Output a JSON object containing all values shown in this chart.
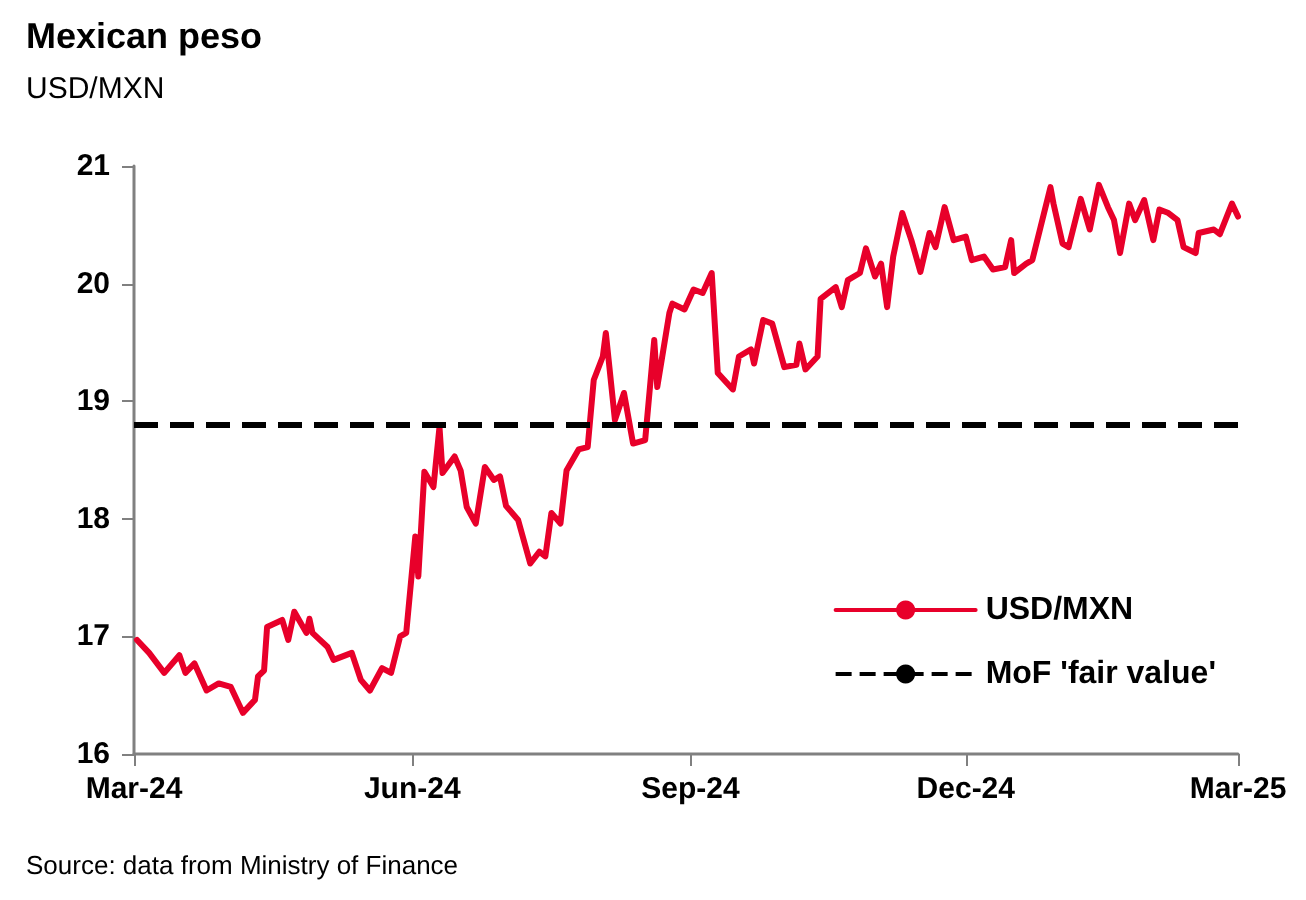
{
  "chart_data": {
    "type": "line",
    "title": "Mexican peso",
    "subtitle": "USD/MXN",
    "x": [
      "2024-03-02",
      "2024-03-06",
      "2024-03-11",
      "2024-03-16",
      "2024-03-18",
      "2024-03-21",
      "2024-03-25",
      "2024-03-29",
      "2024-04-02",
      "2024-04-06",
      "2024-04-10",
      "2024-04-11",
      "2024-04-13",
      "2024-04-14",
      "2024-04-19",
      "2024-04-21",
      "2024-04-23",
      "2024-04-27",
      "2024-04-28",
      "2024-04-29",
      "2024-05-04",
      "2024-05-06",
      "2024-05-12",
      "2024-05-15",
      "2024-05-18",
      "2024-05-22",
      "2024-05-25",
      "2024-05-28",
      "2024-05-30",
      "2024-06-02",
      "2024-06-03",
      "2024-06-05",
      "2024-06-08",
      "2024-06-10",
      "2024-06-11",
      "2024-06-15",
      "2024-06-17",
      "2024-06-19",
      "2024-06-22",
      "2024-06-25",
      "2024-06-28",
      "2024-06-30",
      "2024-07-02",
      "2024-07-06",
      "2024-07-10",
      "2024-07-13",
      "2024-07-15",
      "2024-07-17",
      "2024-07-20",
      "2024-07-22",
      "2024-07-26",
      "2024-07-29",
      "2024-07-31",
      "2024-08-03",
      "2024-08-04",
      "2024-08-07",
      "2024-08-10",
      "2024-08-13",
      "2024-08-17",
      "2024-08-20",
      "2024-08-21",
      "2024-08-25",
      "2024-08-26",
      "2024-08-30",
      "2024-09-02",
      "2024-09-05",
      "2024-09-08",
      "2024-09-10",
      "2024-09-15",
      "2024-09-17",
      "2024-09-21",
      "2024-09-22",
      "2024-09-25",
      "2024-09-28",
      "2024-10-02",
      "2024-10-06",
      "2024-10-07",
      "2024-10-09",
      "2024-10-13",
      "2024-10-14",
      "2024-10-19",
      "2024-10-21",
      "2024-10-23",
      "2024-10-27",
      "2024-10-29",
      "2024-11-01",
      "2024-11-03",
      "2024-11-05",
      "2024-11-07",
      "2024-11-10",
      "2024-11-13",
      "2024-11-16",
      "2024-11-19",
      "2024-11-21",
      "2024-11-24",
      "2024-11-27",
      "2024-12-01",
      "2024-12-03",
      "2024-12-07",
      "2024-12-10",
      "2024-12-14",
      "2024-12-16",
      "2024-12-17",
      "2024-12-21",
      "2024-12-23",
      "2024-12-29",
      "2024-12-30",
      "2025-01-02",
      "2025-01-04",
      "2025-01-08",
      "2025-01-11",
      "2025-01-14",
      "2025-01-17",
      "2025-01-19",
      "2025-01-21",
      "2025-01-24",
      "2025-01-26",
      "2025-01-29",
      "2025-02-01",
      "2025-02-03",
      "2025-02-06",
      "2025-02-09",
      "2025-02-11",
      "2025-02-15",
      "2025-02-16",
      "2025-02-21",
      "2025-02-23",
      "2025-02-27",
      "2025-03-01"
    ],
    "series": [
      {
        "name": "USD/MXN",
        "color": "#e8002a",
        "values": [
          16.97,
          16.86,
          16.69,
          16.84,
          16.69,
          16.77,
          16.54,
          16.6,
          16.57,
          16.35,
          16.46,
          16.66,
          16.71,
          17.08,
          17.14,
          16.97,
          17.21,
          17.03,
          17.15,
          17.03,
          16.91,
          16.8,
          16.86,
          16.63,
          16.54,
          16.73,
          16.69,
          17.0,
          17.03,
          17.85,
          17.51,
          18.4,
          18.27,
          18.78,
          18.39,
          18.53,
          18.41,
          18.1,
          17.96,
          18.44,
          18.33,
          18.36,
          18.11,
          17.99,
          17.62,
          17.72,
          17.68,
          18.05,
          17.96,
          18.41,
          18.59,
          18.61,
          19.18,
          19.38,
          19.58,
          18.84,
          19.07,
          18.64,
          18.67,
          19.52,
          19.12,
          19.75,
          19.83,
          19.78,
          19.95,
          19.92,
          20.09,
          19.24,
          19.1,
          19.38,
          19.44,
          19.32,
          19.69,
          19.66,
          19.29,
          19.31,
          19.49,
          19.27,
          19.38,
          19.87,
          19.97,
          19.8,
          20.03,
          20.09,
          20.3,
          20.06,
          20.17,
          19.8,
          20.23,
          20.6,
          20.37,
          20.1,
          20.43,
          20.31,
          20.65,
          20.37,
          20.4,
          20.2,
          20.23,
          20.12,
          20.14,
          20.37,
          20.09,
          20.17,
          20.2,
          20.82,
          20.68,
          20.34,
          20.31,
          20.72,
          20.46,
          20.84,
          20.65,
          20.54,
          20.26,
          20.68,
          20.54,
          20.71,
          20.37,
          20.63,
          20.6,
          20.54,
          20.31,
          20.26,
          20.43,
          20.46,
          20.42,
          20.68,
          20.57
        ]
      }
    ],
    "xlim": [
      "2024-03-01",
      "2025-03-01"
    ],
    "xticks": [
      {
        "value": "2024-03-01",
        "label": "Mar-24"
      },
      {
        "value": "2024-06-01",
        "label": "Jun-24"
      },
      {
        "value": "2024-09-01",
        "label": "Sep-24"
      },
      {
        "value": "2024-12-01",
        "label": "Dec-24"
      },
      {
        "value": "2025-03-01",
        "label": "Mar-25"
      }
    ],
    "ylim": [
      16,
      21
    ],
    "yticks": [
      16,
      17,
      18,
      19,
      20,
      21
    ],
    "ref_lines": [
      {
        "axis": "y",
        "value": 18.8,
        "label": "MoF 'fair value'",
        "color": "#000000",
        "line_style": "dashed"
      }
    ],
    "legend": "bottom right",
    "grid": false,
    "line_style": "solid",
    "marker": "none",
    "annotations": [
      "Source: data from Ministry of Finance"
    ]
  }
}
